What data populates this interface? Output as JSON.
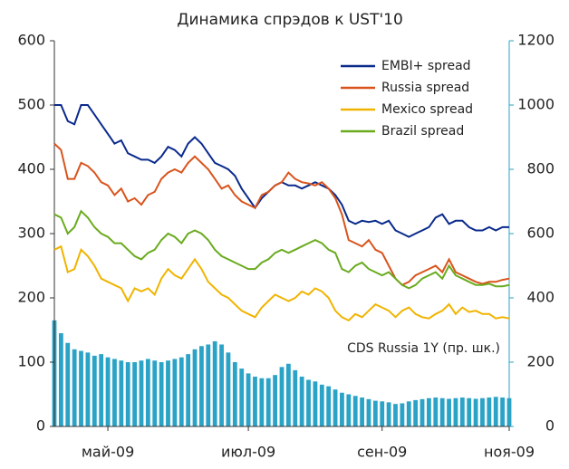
{
  "chart_data": {
    "type": "line",
    "title": "Динамика спрэдов к UST'10",
    "annotation": "CDS Russia 1Y (пр. шк.)",
    "x": [
      0,
      1,
      2,
      3,
      4,
      5,
      6,
      7,
      8,
      9,
      10,
      11,
      12,
      13,
      14,
      15,
      16,
      17,
      18,
      19,
      20,
      21,
      22,
      23,
      24,
      25,
      26,
      27,
      28,
      29,
      30,
      31,
      32,
      33,
      34,
      35,
      36,
      37,
      38,
      39,
      40,
      41,
      42,
      43,
      44,
      45,
      46,
      47,
      48,
      49,
      50,
      51,
      52,
      53,
      54,
      55,
      56,
      57,
      58,
      59,
      60,
      61,
      62,
      63,
      64,
      65,
      66,
      67,
      68
    ],
    "xlim": [
      0,
      68
    ],
    "xticks": [
      {
        "value": 8,
        "label": "май-09"
      },
      {
        "value": 29,
        "label": "июл-09"
      },
      {
        "value": 49,
        "label": "сен-09"
      },
      {
        "value": 68,
        "label": "ноя-09"
      }
    ],
    "ylim": [
      0,
      600
    ],
    "yticks": [
      0,
      100,
      200,
      300,
      400,
      500,
      600
    ],
    "y2lim": [
      0,
      1200
    ],
    "y2ticks": [
      0,
      200,
      400,
      600,
      800,
      1000,
      1200
    ],
    "legend": "upper right",
    "series": [
      {
        "name": "EMBI+ spread",
        "color": "#0a2a8c",
        "values": [
          500,
          500,
          475,
          470,
          500,
          500,
          485,
          470,
          455,
          440,
          445,
          425,
          420,
          415,
          415,
          410,
          420,
          435,
          430,
          420,
          440,
          450,
          440,
          425,
          410,
          405,
          400,
          390,
          370,
          355,
          340,
          355,
          365,
          375,
          380,
          375,
          375,
          370,
          375,
          380,
          375,
          370,
          360,
          345,
          320,
          315,
          320,
          318,
          320,
          315,
          320,
          305,
          300,
          295,
          300,
          305,
          310,
          325,
          330,
          315,
          320,
          320,
          310,
          305,
          305,
          310,
          305,
          310,
          310
        ]
      },
      {
        "name": "Russia spread",
        "color": "#d9541c",
        "values": [
          440,
          430,
          385,
          385,
          410,
          405,
          395,
          380,
          375,
          360,
          370,
          350,
          355,
          345,
          360,
          365,
          385,
          395,
          400,
          395,
          410,
          420,
          410,
          400,
          385,
          370,
          375,
          360,
          350,
          345,
          340,
          360,
          365,
          375,
          380,
          395,
          385,
          380,
          378,
          375,
          380,
          370,
          355,
          330,
          290,
          285,
          280,
          290,
          275,
          270,
          250,
          230,
          220,
          225,
          235,
          240,
          245,
          250,
          240,
          260,
          240,
          235,
          230,
          225,
          222,
          225,
          225,
          228,
          230
        ]
      },
      {
        "name": "Mexico spread",
        "color": "#f0b400",
        "values": [
          275,
          280,
          240,
          245,
          275,
          265,
          250,
          230,
          225,
          220,
          215,
          195,
          215,
          210,
          215,
          205,
          230,
          245,
          235,
          230,
          245,
          260,
          245,
          225,
          215,
          205,
          200,
          190,
          180,
          175,
          170,
          185,
          195,
          205,
          200,
          195,
          200,
          210,
          205,
          215,
          210,
          200,
          180,
          170,
          165,
          175,
          170,
          180,
          190,
          185,
          180,
          170,
          180,
          185,
          175,
          170,
          168,
          175,
          180,
          190,
          175,
          185,
          178,
          180,
          175,
          175,
          168,
          170,
          168
        ]
      },
      {
        "name": "Brazil spread",
        "color": "#6aab1e",
        "values": [
          330,
          325,
          300,
          310,
          335,
          325,
          310,
          300,
          295,
          285,
          285,
          275,
          265,
          260,
          270,
          275,
          290,
          300,
          295,
          285,
          300,
          305,
          300,
          290,
          275,
          265,
          260,
          255,
          250,
          245,
          245,
          255,
          260,
          270,
          275,
          270,
          275,
          280,
          285,
          290,
          285,
          275,
          270,
          245,
          240,
          250,
          255,
          245,
          240,
          235,
          240,
          230,
          220,
          215,
          220,
          230,
          235,
          240,
          230,
          250,
          235,
          230,
          225,
          220,
          220,
          222,
          218,
          218,
          220
        ]
      },
      {
        "type": "bar",
        "axis": "y2",
        "color": "#2ba3c7",
        "values": [
          330,
          290,
          260,
          240,
          235,
          230,
          220,
          225,
          215,
          210,
          205,
          200,
          200,
          205,
          210,
          205,
          200,
          205,
          210,
          215,
          225,
          240,
          250,
          255,
          265,
          255,
          230,
          200,
          180,
          165,
          155,
          150,
          150,
          160,
          185,
          195,
          175,
          155,
          145,
          140,
          130,
          125,
          115,
          105,
          100,
          95,
          90,
          85,
          80,
          78,
          75,
          70,
          72,
          78,
          82,
          85,
          88,
          90,
          88,
          86,
          88,
          90,
          88,
          86,
          88,
          90,
          92,
          90,
          88
        ]
      }
    ]
  }
}
